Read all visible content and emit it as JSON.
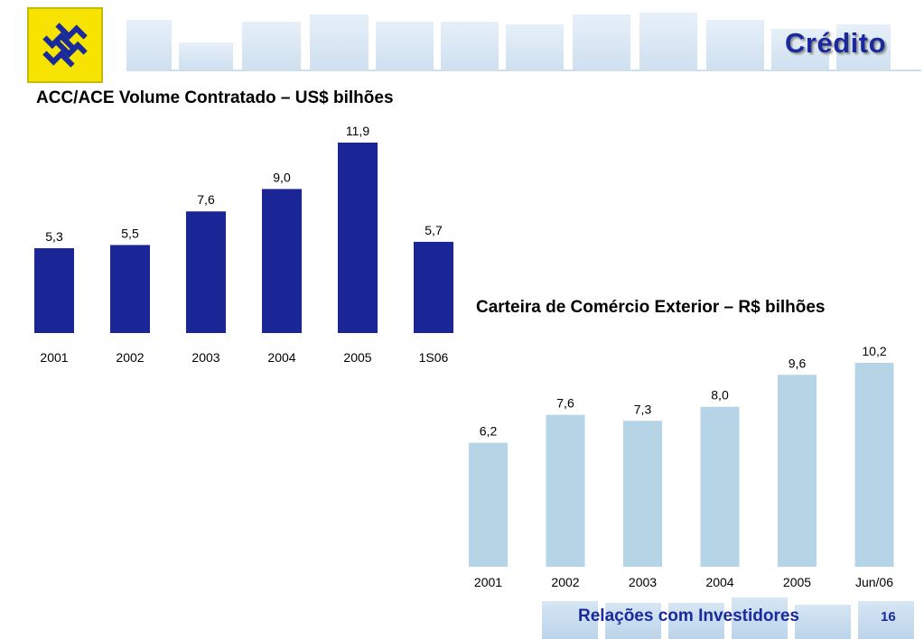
{
  "header": {
    "section_title": "Crédito"
  },
  "footer": {
    "label": "Relações com Investidores",
    "page_number": "16"
  },
  "colors": {
    "navy": "#1a2696",
    "light_blue": "#b5d5e6",
    "brand_yellow": "#f6e400",
    "deco_blue": "#dbe9f5"
  },
  "chart_data": [
    {
      "type": "bar",
      "title": "ACC/ACE Volume Contratado – US$ bilhões",
      "categories": [
        "2001",
        "2002",
        "2003",
        "2004",
        "2005",
        "1S06"
      ],
      "values": [
        5.3,
        5.5,
        7.6,
        9.0,
        11.9,
        5.7
      ],
      "value_labels": [
        "5,3",
        "5,5",
        "7,6",
        "9,0",
        "11,9",
        "5,7"
      ],
      "color": "#1a2696"
    },
    {
      "type": "bar",
      "title": "Carteira de Comércio Exterior – R$ bilhões",
      "categories": [
        "2001",
        "2002",
        "2003",
        "2004",
        "2005",
        "Jun/06"
      ],
      "values": [
        6.2,
        7.6,
        7.3,
        8.0,
        9.6,
        10.2
      ],
      "value_labels": [
        "6,2",
        "7,6",
        "7,3",
        "8,0",
        "9,6",
        "10,2"
      ],
      "color": "#b5d5e6"
    }
  ]
}
